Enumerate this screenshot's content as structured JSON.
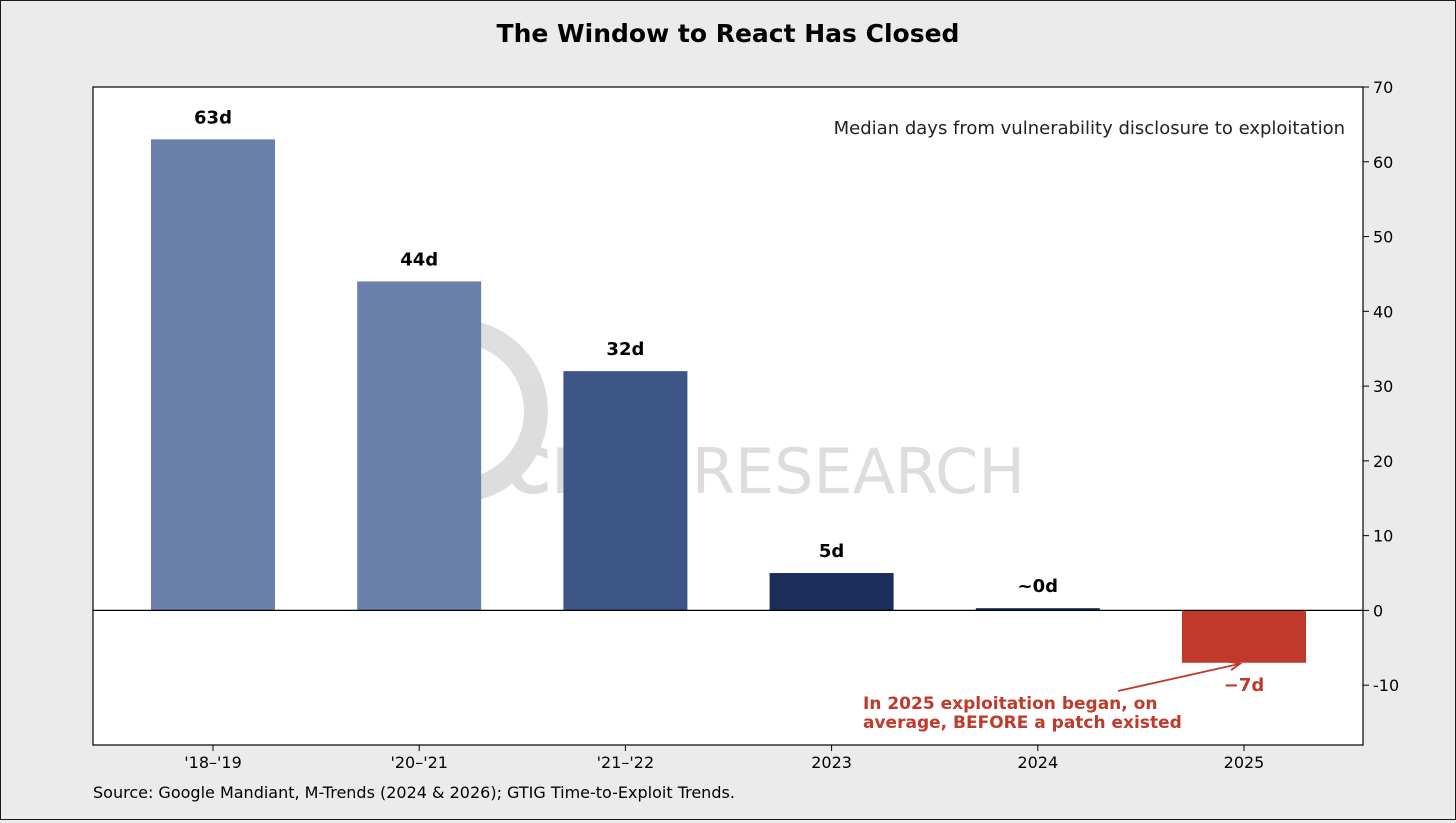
{
  "chart_data": {
    "type": "bar",
    "title": "The Window to React Has Closed",
    "subtitle": "Median days from vulnerability disclosure to exploitation",
    "categories": [
      "'18–'19",
      "'20–'21",
      "'21–'22",
      "2023",
      "2024",
      "2025"
    ],
    "values": [
      63,
      44,
      32,
      5,
      0.3,
      -7
    ],
    "value_labels": [
      "63d",
      "44d",
      "32d",
      "5d",
      "~0d",
      "−7d"
    ],
    "bar_colors": [
      "#6a81ab",
      "#6a81ab",
      "#3d5587",
      "#1b2d5a",
      "#1b2d5a",
      "#c0392b"
    ],
    "ylim": [
      -18,
      70
    ],
    "yticks": [
      -10,
      0,
      10,
      20,
      30,
      40,
      50,
      60,
      70
    ],
    "y_axis_side": "right",
    "grid": false,
    "xlabel": "",
    "ylabel": "",
    "annotation": {
      "text_lines": [
        "In 2025 exploitation began, on",
        "average, BEFORE a patch existed"
      ],
      "color": "#c0392b",
      "points_to": "2025"
    },
    "watermark": {
      "text_bold": "CIT",
      "text_bold2": "NI",
      "text_light": "RESEARCH"
    },
    "source": "Source: Google Mandiant, M-Trends (2024 & 2026); GTIG Time-to-Exploit Trends."
  }
}
